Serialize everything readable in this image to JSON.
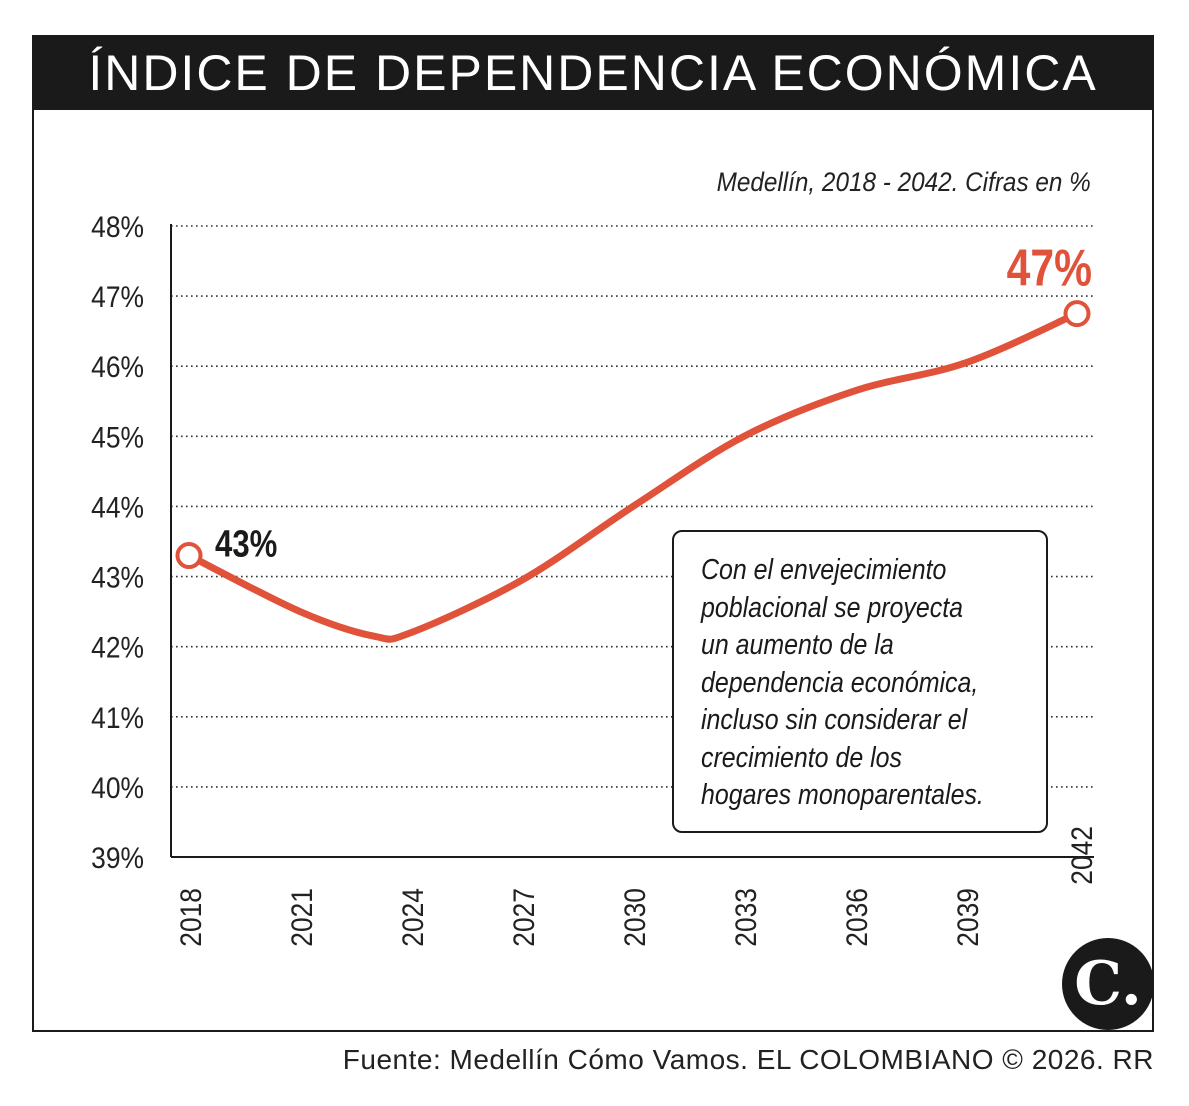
{
  "title": "ÍNDICE DE DEPENDENCIA ECONÓMICA",
  "subtitle": "Medellín, 2018 - 2042. Cifras en %",
  "annotation": {
    "lines": [
      "Con el envejecimiento",
      "poblacional se proyecta",
      "un aumento de la",
      "dependencia económica,",
      "incluso sin considerar el",
      "crecimiento de los",
      "hogares monoparentales."
    ]
  },
  "source": "Fuente: Medellín Cómo Vamos. EL COLOMBIANO © 2026. RR",
  "logo_text": "C.",
  "colors": {
    "line": "#e0523a",
    "end_label": "#e0523a",
    "title_bg": "#1a1a1a"
  },
  "chart_data": {
    "type": "line",
    "title": "ÍNDICE DE DEPENDENCIA ECONÓMICA",
    "subtitle": "Medellín, 2018 - 2042. Cifras en %",
    "x_ticks": [
      "2018",
      "2021",
      "2024",
      "2027",
      "2030",
      "2033",
      "2036",
      "2039",
      "2042"
    ],
    "y_ticks": [
      "48%",
      "47%",
      "46%",
      "45%",
      "44%",
      "43%",
      "42%",
      "41%",
      "40%",
      "39%"
    ],
    "ylim": [
      39,
      48
    ],
    "xlim": [
      2018,
      2042
    ],
    "grid": "horizontal dotted",
    "series": [
      {
        "x": [
          2018,
          2021,
          2023,
          2024,
          2027,
          2030,
          2033,
          2036,
          2039,
          2042
        ],
        "values": [
          43.3,
          42.5,
          42.15,
          42.2,
          42.95,
          44.0,
          45.0,
          45.65,
          46.05,
          46.75
        ]
      }
    ],
    "labels": {
      "start": "43%",
      "end": "47%"
    }
  }
}
